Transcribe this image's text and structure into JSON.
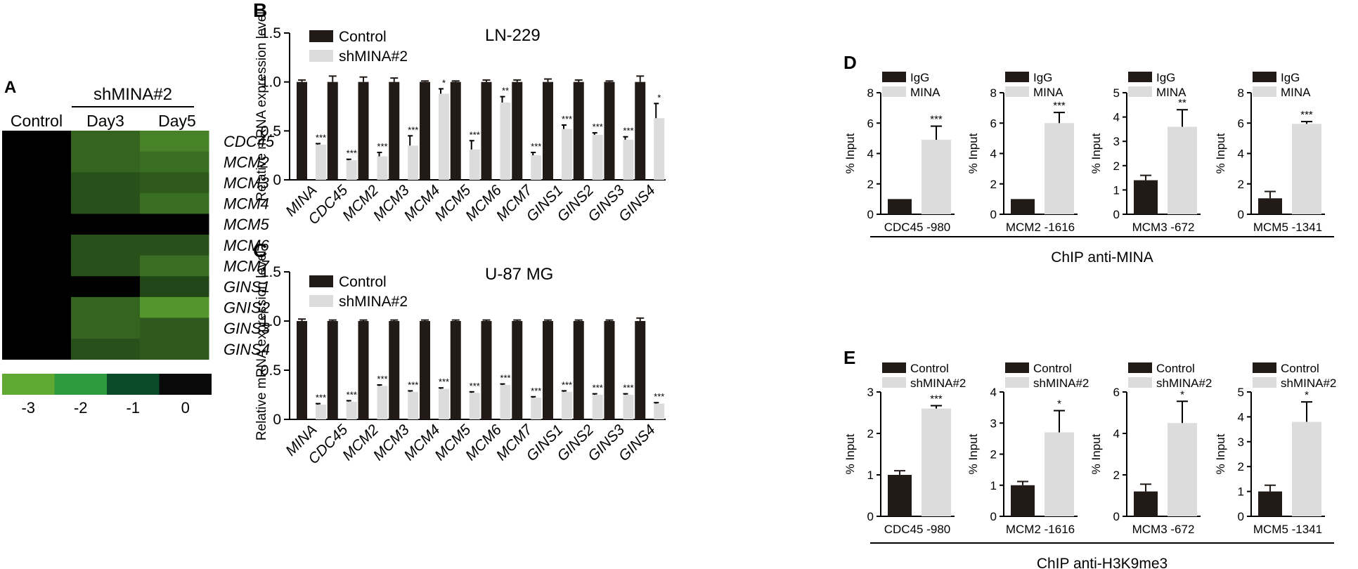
{
  "colors": {
    "control": "#211a17",
    "treated": "#dcdcdc",
    "axis": "#000000"
  },
  "heatmap": {
    "panel_label": "A",
    "group_header": "shMINA#2",
    "columns": [
      "Control",
      "Day3",
      "Day5"
    ],
    "genes": [
      "CDC45",
      "MCM2",
      "MCM3",
      "MCM4",
      "MCM5",
      "MCM6",
      "MCM7",
      "GINS1",
      "GNIS2",
      "GINS3",
      "GINS4"
    ],
    "values": [
      [
        0,
        -1.6,
        -2.2
      ],
      [
        0,
        -1.6,
        -1.8
      ],
      [
        0,
        -1.2,
        -1.4
      ],
      [
        0,
        -1.2,
        -1.8
      ],
      [
        0,
        0,
        0
      ],
      [
        0,
        -1.2,
        -1.2
      ],
      [
        0,
        -1.2,
        -1.8
      ],
      [
        0,
        0,
        -1.0
      ],
      [
        0,
        -1.6,
        -2.6
      ],
      [
        0,
        -1.6,
        -1.4
      ],
      [
        0,
        -1.2,
        -1.4
      ]
    ],
    "legend_colors": [
      "#60aa33",
      "#2e9a40",
      "#0a4b2a",
      "#0a0a0a"
    ],
    "legend_labels": [
      "-3",
      "-2",
      "-1",
      "0"
    ]
  },
  "chart_data": [
    {
      "type": "bar",
      "panel": "B",
      "title": "LN-229",
      "ylabel": "Relative mRNA expression level",
      "ylim": [
        0,
        1.5
      ],
      "yticks": [
        "0",
        "0.5",
        "1.0",
        "1.5"
      ],
      "categories": [
        "MINA",
        "CDC45",
        "MCM2",
        "MCM3",
        "MCM4",
        "MCM5",
        "MCM6",
        "MCM7",
        "GINS1",
        "GINS2",
        "GINS3",
        "GINS4"
      ],
      "series": [
        {
          "name": "Control",
          "values": [
            1.0,
            1.0,
            1.0,
            1.0,
            1.0,
            1.0,
            1.0,
            1.0,
            1.0,
            1.0,
            1.0,
            1.0
          ],
          "errors": [
            0.02,
            0.06,
            0.05,
            0.04,
            0.01,
            0.01,
            0.02,
            0.02,
            0.03,
            0.02,
            0.01,
            0.06
          ]
        },
        {
          "name": "shMINA#2",
          "values": [
            0.36,
            0.2,
            0.24,
            0.35,
            0.88,
            0.31,
            0.79,
            0.25,
            0.52,
            0.46,
            0.41,
            0.63
          ],
          "errors": [
            0.01,
            0.01,
            0.04,
            0.1,
            0.05,
            0.09,
            0.06,
            0.03,
            0.04,
            0.02,
            0.03,
            0.15
          ]
        }
      ],
      "significance": [
        "***",
        "***",
        "***",
        "***",
        "*",
        "***",
        "**",
        "***",
        "***",
        "***",
        "***",
        "*"
      ]
    },
    {
      "type": "bar",
      "panel": "C",
      "title": "U-87 MG",
      "ylabel": "Relative mRNA expression level",
      "ylim": [
        0,
        1.5
      ],
      "yticks": [
        "0",
        "0.5",
        "1.0",
        "1.5"
      ],
      "categories": [
        "MINA",
        "CDC45",
        "MCM2",
        "MCM3",
        "MCM4",
        "MCM5",
        "MCM6",
        "MCM7",
        "GINS1",
        "GINS2",
        "GINS3",
        "GINS4"
      ],
      "series": [
        {
          "name": "Control",
          "values": [
            1.0,
            1.0,
            1.0,
            1.0,
            1.0,
            1.0,
            1.0,
            1.0,
            1.0,
            1.0,
            1.0,
            1.0
          ],
          "errors": [
            0.02,
            0.01,
            0.01,
            0.01,
            0.01,
            0.01,
            0.01,
            0.01,
            0.01,
            0.01,
            0.01,
            0.03
          ]
        },
        {
          "name": "shMINA#2",
          "values": [
            0.15,
            0.18,
            0.34,
            0.28,
            0.31,
            0.27,
            0.35,
            0.22,
            0.28,
            0.25,
            0.25,
            0.16
          ],
          "errors": [
            0.01,
            0.01,
            0.01,
            0.01,
            0.01,
            0.01,
            0.01,
            0.01,
            0.01,
            0.01,
            0.01,
            0.01
          ]
        }
      ],
      "significance": [
        "***",
        "***",
        "***",
        "***",
        "***",
        "***",
        "***",
        "***",
        "***",
        "***",
        "***",
        "***"
      ]
    },
    {
      "type": "bar",
      "panel": "D",
      "group": "ChIP anti-MINA",
      "legend": [
        "IgG",
        "MINA"
      ],
      "ylabel": "% Input",
      "subplots": [
        {
          "category": "CDC45 -980",
          "ymax": 8,
          "yticks": [
            "0",
            "2",
            "4",
            "6",
            "8"
          ],
          "values": [
            1.0,
            4.9
          ],
          "errors": [
            0.0,
            0.9
          ],
          "significance": "***"
        },
        {
          "category": "MCM2 -1616",
          "ymax": 8,
          "yticks": [
            "0",
            "2",
            "4",
            "6",
            "8"
          ],
          "values": [
            1.0,
            6.0
          ],
          "errors": [
            0.0,
            0.7
          ],
          "significance": "***"
        },
        {
          "category": "MCM3 -672",
          "ymax": 5,
          "yticks": [
            "0",
            "1",
            "2",
            "3",
            "4",
            "5"
          ],
          "values": [
            1.4,
            3.6
          ],
          "errors": [
            0.2,
            0.7
          ],
          "significance": "**"
        },
        {
          "category": "MCM5 -1341",
          "ymax": 8,
          "yticks": [
            "0",
            "2",
            "4",
            "6",
            "8"
          ],
          "values": [
            1.05,
            5.95
          ],
          "errors": [
            0.45,
            0.15
          ],
          "significance": "***"
        }
      ]
    },
    {
      "type": "bar",
      "panel": "E",
      "group": "ChIP anti-H3K9me3",
      "legend": [
        "Control",
        "shMINA#2"
      ],
      "ylabel": "% Input",
      "subplots": [
        {
          "category": "CDC45 -980",
          "ymax": 3,
          "yticks": [
            "0",
            "1",
            "2",
            "3"
          ],
          "values": [
            1.0,
            2.6
          ],
          "errors": [
            0.1,
            0.07
          ],
          "significance": "***"
        },
        {
          "category": "MCM2 -1616",
          "ymax": 4,
          "yticks": [
            "0",
            "1",
            "2",
            "3",
            "4"
          ],
          "values": [
            1.0,
            2.7
          ],
          "errors": [
            0.12,
            0.7
          ],
          "significance": "*"
        },
        {
          "category": "MCM3 -672",
          "ymax": 6,
          "yticks": [
            "0",
            "2",
            "4",
            "6"
          ],
          "values": [
            1.2,
            4.5
          ],
          "errors": [
            0.35,
            1.05
          ],
          "significance": "*"
        },
        {
          "category": "MCM5 -1341",
          "ymax": 5,
          "yticks": [
            "0",
            "1",
            "2",
            "3",
            "4",
            "5"
          ],
          "values": [
            1.0,
            3.8
          ],
          "errors": [
            0.25,
            0.8
          ],
          "significance": "*"
        }
      ]
    }
  ]
}
